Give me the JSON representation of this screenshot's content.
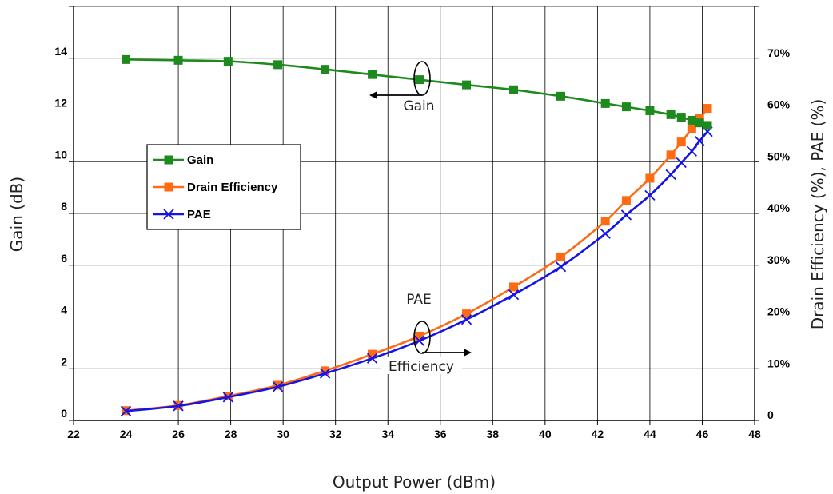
{
  "chart_data": {
    "type": "line",
    "xlabel": "Output Power (dBm)",
    "ylabel": "Gain (dB)",
    "y2label": "Drain Efficiency (%), PAE (%)",
    "xlim": [
      22,
      48
    ],
    "ylim": [
      0,
      16
    ],
    "y2lim": [
      0,
      80
    ],
    "x_ticks": [
      "22",
      "24",
      "26",
      "28",
      "30",
      "32",
      "34",
      "36",
      "38",
      "40",
      "42",
      "44",
      "46",
      "48"
    ],
    "y_ticks": [
      "0",
      "2",
      "4",
      "6",
      "8",
      "10",
      "12",
      "14"
    ],
    "y2_ticks": [
      "0",
      "10%",
      "20%",
      "30%",
      "40%",
      "50%",
      "60%",
      "70%"
    ],
    "grid": true,
    "legend_position": "middle-left",
    "series": [
      {
        "name": "Gain",
        "axis": "left",
        "color": "#1e8a1e",
        "marker": "square",
        "x": [
          24,
          26,
          27.9,
          29.8,
          31.6,
          33.4,
          35.2,
          37.0,
          38.8,
          40.6,
          42.3,
          43.1,
          44.0,
          44.8,
          45.2,
          45.6,
          45.9,
          46.2
        ],
        "values": [
          13.95,
          13.92,
          13.88,
          13.75,
          13.57,
          13.37,
          13.17,
          12.97,
          12.78,
          12.53,
          12.25,
          12.12,
          11.97,
          11.82,
          11.72,
          11.6,
          11.5,
          11.4
        ]
      },
      {
        "name": "Drain Efficiency",
        "axis": "right",
        "color": "#ff6a13",
        "marker": "square",
        "x": [
          24,
          26,
          27.9,
          29.8,
          31.6,
          33.4,
          35.2,
          37.0,
          38.8,
          40.6,
          42.3,
          43.1,
          44.0,
          44.8,
          45.2,
          45.6,
          45.9,
          46.2
        ],
        "values": [
          1.9,
          2.9,
          4.7,
          6.8,
          9.6,
          12.8,
          16.3,
          20.6,
          25.8,
          31.6,
          38.5,
          42.5,
          46.8,
          51.3,
          53.8,
          56.3,
          58.3,
          60.3
        ]
      },
      {
        "name": "PAE",
        "axis": "right",
        "color": "#1414e6",
        "marker": "x",
        "x": [
          24,
          26,
          27.9,
          29.8,
          31.6,
          33.4,
          35.2,
          37.0,
          38.8,
          40.6,
          42.3,
          43.1,
          44.0,
          44.8,
          45.2,
          45.6,
          45.9,
          46.2
        ],
        "values": [
          1.8,
          2.8,
          4.5,
          6.5,
          9.1,
          12.0,
          15.4,
          19.5,
          24.3,
          29.7,
          36.1,
          39.7,
          43.5,
          47.5,
          49.8,
          52.0,
          54.0,
          55.8
        ]
      }
    ],
    "annotations": [
      "Gain",
      "PAE",
      "Efficiency"
    ]
  }
}
